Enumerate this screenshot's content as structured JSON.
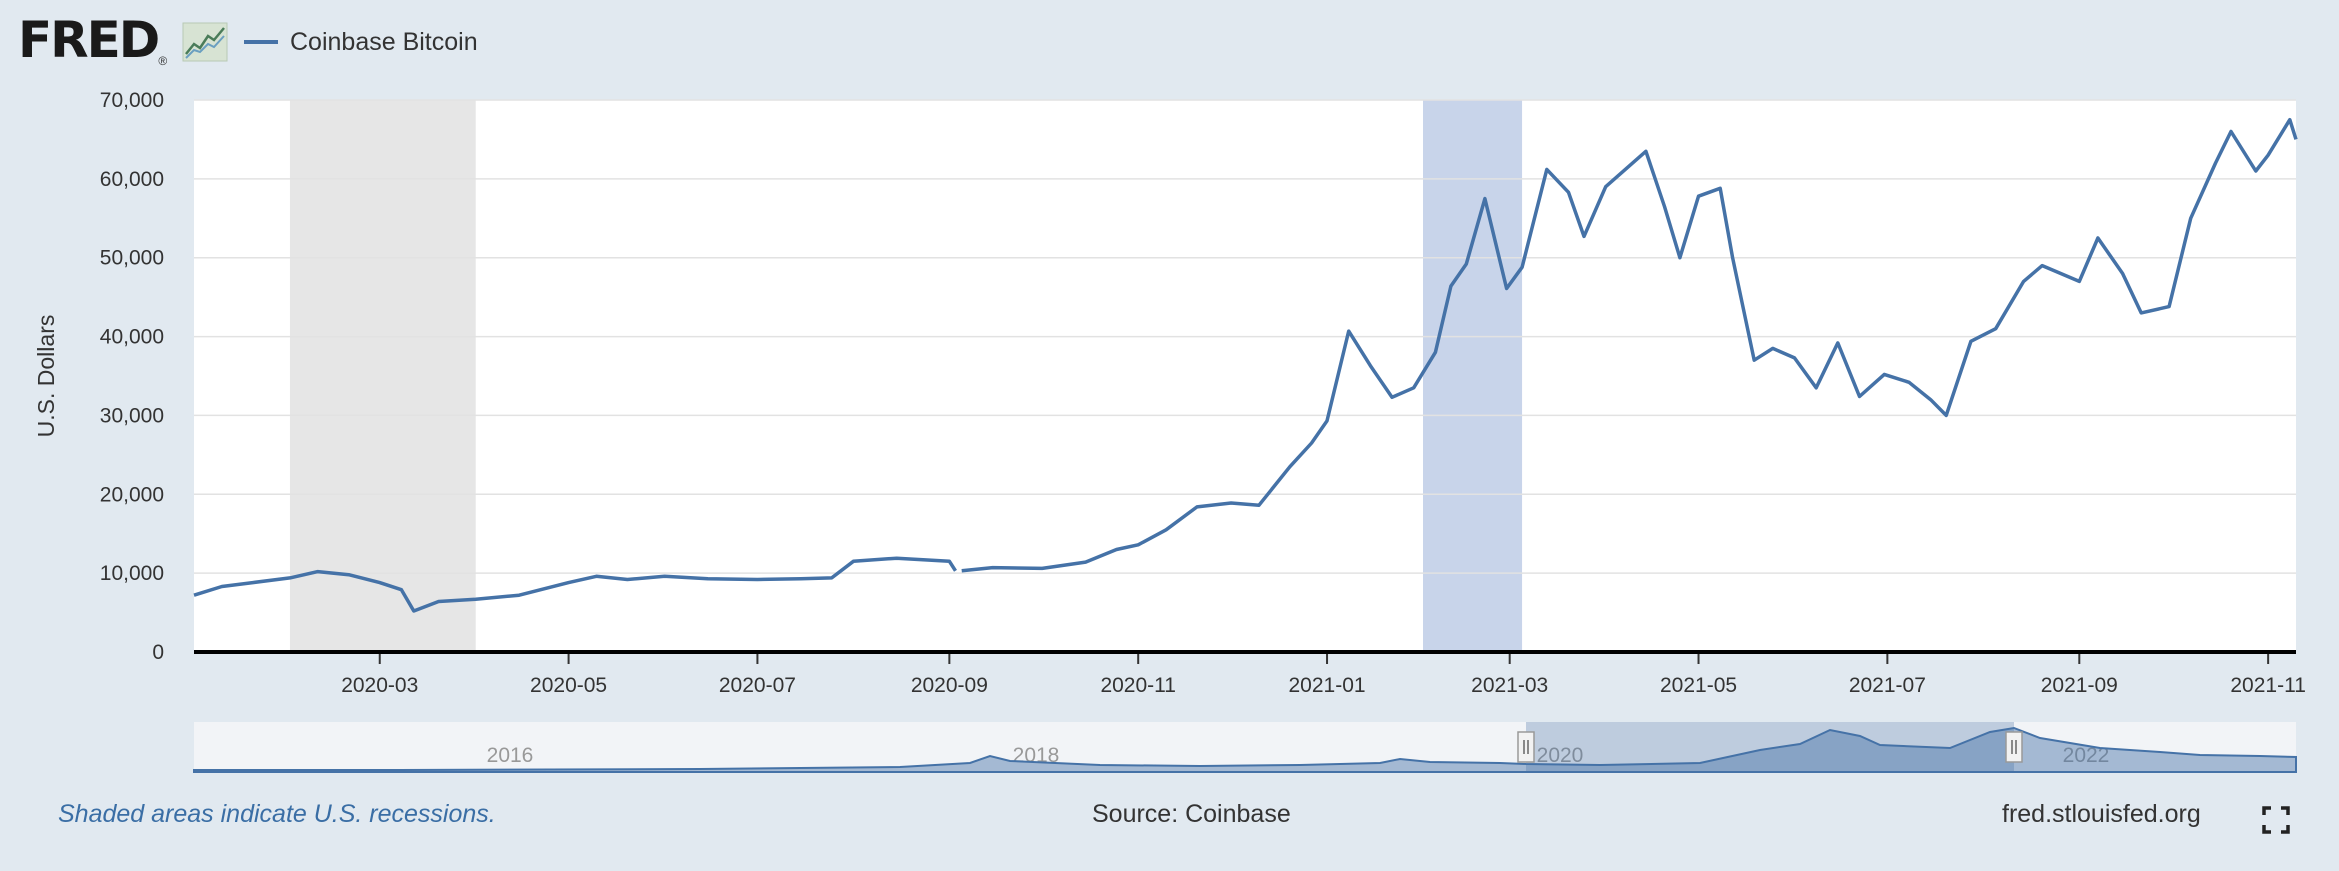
{
  "header": {
    "logo_text": "FRED",
    "logo_reg": "®"
  },
  "legend": {
    "series_label": "Coinbase Bitcoin",
    "color": "#4572a7"
  },
  "footer": {
    "note": "Shaded areas indicate U.S. recessions.",
    "source": "Source: Coinbase",
    "url": "fred.stlouisfed.org"
  },
  "chart_data": {
    "type": "line",
    "title": "",
    "xlabel": "",
    "ylabel": "U.S. Dollars",
    "ylim": [
      0,
      70000
    ],
    "xlim": [
      "2020-01-01",
      "2021-11-10"
    ],
    "yticks": [
      0,
      10000,
      20000,
      30000,
      40000,
      50000,
      60000,
      70000
    ],
    "ytick_labels": [
      "0",
      "10,000",
      "20,000",
      "30,000",
      "40,000",
      "50,000",
      "60,000",
      "70,000"
    ],
    "xticks": [
      "2020-03-01",
      "2020-05-01",
      "2020-07-01",
      "2020-09-01",
      "2020-11-01",
      "2021-01-01",
      "2021-03-01",
      "2021-05-01",
      "2021-07-01",
      "2021-09-01",
      "2021-11-01"
    ],
    "xtick_labels": [
      "2020-03",
      "2020-05",
      "2020-07",
      "2020-09",
      "2020-11",
      "2021-01",
      "2021-03",
      "2021-05",
      "2021-07",
      "2021-09",
      "2021-11"
    ],
    "grid": true,
    "recession_shading": [
      [
        "2020-02-01",
        "2020-04-01"
      ]
    ],
    "selected_band": [
      "2021-02-01",
      "2021-03-05"
    ],
    "series": [
      {
        "name": "Coinbase Bitcoin",
        "color": "#4572a7",
        "x": [
          "2020-01-01",
          "2020-01-10",
          "2020-01-20",
          "2020-02-01",
          "2020-02-10",
          "2020-02-20",
          "2020-03-01",
          "2020-03-08",
          "2020-03-12",
          "2020-03-20",
          "2020-04-01",
          "2020-04-15",
          "2020-05-01",
          "2020-05-10",
          "2020-05-20",
          "2020-06-01",
          "2020-06-15",
          "2020-07-01",
          "2020-07-15",
          "2020-07-25",
          "2020-08-01",
          "2020-08-15",
          "2020-09-01",
          "2020-09-03",
          null,
          "2020-09-05",
          "2020-09-15",
          "2020-10-01",
          "2020-10-15",
          "2020-10-25",
          "2020-11-01",
          "2020-11-10",
          "2020-11-20",
          "2020-12-01",
          "2020-12-10",
          "2020-12-20",
          "2020-12-27",
          "2021-01-01",
          "2021-01-08",
          "2021-01-15",
          "2021-01-22",
          "2021-01-29",
          "2021-02-05",
          "2021-02-10",
          "2021-02-15",
          "2021-02-21",
          "2021-02-28",
          "2021-03-05",
          "2021-03-13",
          "2021-03-20",
          "2021-03-25",
          "2021-04-01",
          "2021-04-14",
          "2021-04-20",
          "2021-04-25",
          "2021-05-01",
          "2021-05-08",
          "2021-05-12",
          "2021-05-19",
          "2021-05-25",
          "2021-06-01",
          "2021-06-08",
          "2021-06-15",
          "2021-06-22",
          "2021-06-30",
          "2021-07-08",
          "2021-07-15",
          "2021-07-20",
          "2021-07-28",
          "2021-08-05",
          "2021-08-14",
          "2021-08-20",
          "2021-09-01",
          "2021-09-07",
          "2021-09-15",
          "2021-09-21",
          "2021-09-30",
          "2021-10-07",
          "2021-10-15",
          "2021-10-20",
          "2021-10-28",
          "2021-11-01",
          "2021-11-08",
          "2021-11-10"
        ],
        "values": [
          7200,
          8300,
          8800,
          9400,
          10200,
          9800,
          8800,
          7900,
          5200,
          6400,
          6700,
          7200,
          8800,
          9600,
          9200,
          9600,
          9300,
          9200,
          9300,
          9400,
          11500,
          11900,
          11500,
          10300,
          null,
          10300,
          10700,
          10600,
          11400,
          13000,
          13600,
          15500,
          18400,
          18900,
          18600,
          23500,
          26500,
          29300,
          40700,
          36300,
          32300,
          33500,
          38000,
          46400,
          49200,
          57500,
          46100,
          48800,
          61200,
          58300,
          52700,
          59000,
          63500,
          56500,
          50000,
          57800,
          58800,
          50000,
          37000,
          38500,
          37300,
          33500,
          39200,
          32400,
          35200,
          34200,
          32000,
          30000,
          39400,
          41000,
          47000,
          49000,
          47000,
          52500,
          48000,
          43000,
          43800,
          55000,
          62000,
          66000,
          61000,
          63000,
          67500,
          65000
        ]
      }
    ]
  },
  "navigator": {
    "years": [
      "2016",
      "2018",
      "2020",
      "2022"
    ],
    "range_start": "2020-01-01",
    "range_end": "2021-11-10"
  }
}
